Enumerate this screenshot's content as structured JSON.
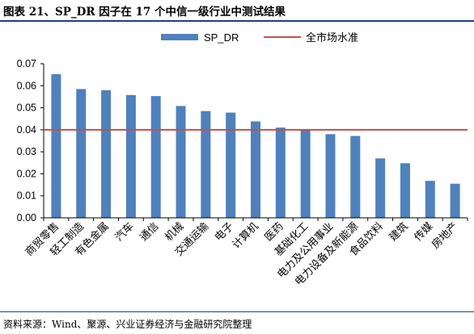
{
  "title": "图表 21、SP_DR 因子在 17 个中信一级行业中测试结果",
  "source": "资料来源：Wind、聚源、兴业证券经济与金融研究院整理",
  "chart_data": {
    "type": "bar",
    "categories": [
      "商贸零售",
      "轻工制造",
      "有色金属",
      "汽车",
      "通信",
      "机械",
      "交通运输",
      "电子",
      "计算机",
      "医药",
      "基础化工",
      "电力及公用事业",
      "电力设备及新能源",
      "食品饮料",
      "建筑",
      "传媒",
      "房地产"
    ],
    "series": [
      {
        "name": "SP_DR",
        "type": "bar",
        "color": "#4f81bd",
        "values": [
          0.0653,
          0.0585,
          0.058,
          0.0558,
          0.0553,
          0.0508,
          0.0485,
          0.0478,
          0.0438,
          0.041,
          0.0402,
          0.038,
          0.0372,
          0.027,
          0.0248,
          0.0168,
          0.0155
        ]
      },
      {
        "name": "全市场水准",
        "type": "line",
        "color": "#c0504d",
        "value": 0.04
      }
    ],
    "ylim": [
      0,
      0.07
    ],
    "yticks": [
      "0.00",
      "0.01",
      "0.02",
      "0.03",
      "0.04",
      "0.05",
      "0.06",
      "0.07"
    ],
    "legend_position": "top",
    "grid": false
  }
}
